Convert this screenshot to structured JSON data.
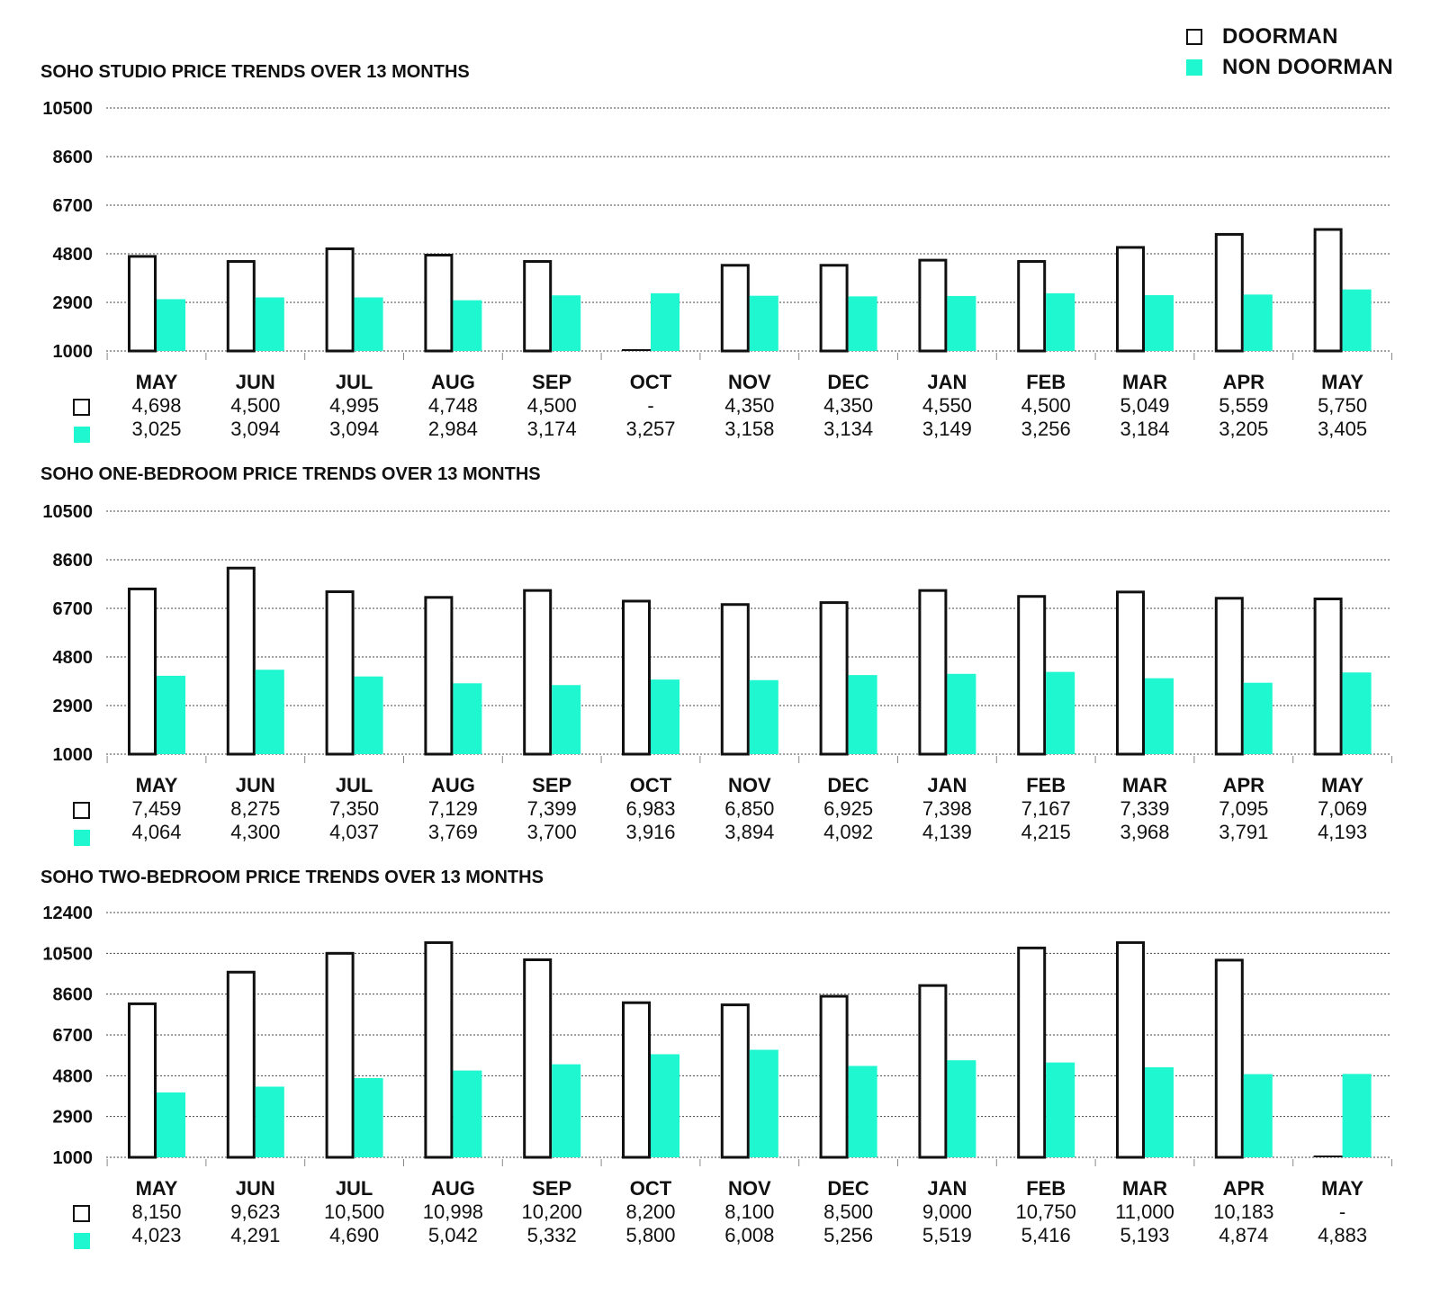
{
  "colors": {
    "doorman_stroke": "#111111",
    "non_doorman": "#1ef7cf",
    "grid": "#444444"
  },
  "legend": {
    "doorman": "DOORMAN",
    "non_doorman": "NON DOORMAN"
  },
  "chart_data": [
    {
      "type": "bar",
      "title": "SOHO STUDIO PRICE TRENDS OVER 13 MONTHS",
      "categories": [
        "MAY",
        "JUN",
        "JUL",
        "AUG",
        "SEP",
        "OCT",
        "NOV",
        "DEC",
        "JAN",
        "FEB",
        "MAR",
        "APR",
        "MAY"
      ],
      "yticks": [
        10500,
        8600,
        6700,
        4800,
        2900,
        1000
      ],
      "ylim": [
        1000,
        10500
      ],
      "series": [
        {
          "name": "DOORMAN",
          "values": [
            4698,
            4500,
            4995,
            4748,
            4500,
            null,
            4350,
            4350,
            4550,
            4500,
            5049,
            5559,
            5750
          ],
          "labels": [
            "4,698",
            "4,500",
            "4,995",
            "4,748",
            "4,500",
            "-",
            "4,350",
            "4,350",
            "4,550",
            "4,500",
            "5,049",
            "5,559",
            "5,750"
          ]
        },
        {
          "name": "NON DOORMAN",
          "values": [
            3025,
            3094,
            3094,
            2984,
            3174,
            3257,
            3158,
            3134,
            3149,
            3256,
            3184,
            3205,
            3405
          ],
          "labels": [
            "3,025",
            "3,094",
            "3,094",
            "2,984",
            "3,174",
            "3,257",
            "3,158",
            "3,134",
            "3,149",
            "3,256",
            "3,184",
            "3,205",
            "3,405"
          ]
        }
      ]
    },
    {
      "type": "bar",
      "title": "SOHO ONE-BEDROOM PRICE TRENDS OVER 13 MONTHS",
      "categories": [
        "MAY",
        "JUN",
        "JUL",
        "AUG",
        "SEP",
        "OCT",
        "NOV",
        "DEC",
        "JAN",
        "FEB",
        "MAR",
        "APR",
        "MAY"
      ],
      "yticks": [
        10500,
        8600,
        6700,
        4800,
        2900,
        1000
      ],
      "ylim": [
        1000,
        10500
      ],
      "series": [
        {
          "name": "DOORMAN",
          "values": [
            7459,
            8275,
            7350,
            7129,
            7399,
            6983,
            6850,
            6925,
            7398,
            7167,
            7339,
            7095,
            7069
          ],
          "labels": [
            "7,459",
            "8,275",
            "7,350",
            "7,129",
            "7,399",
            "6,983",
            "6,850",
            "6,925",
            "7,398",
            "7,167",
            "7,339",
            "7,095",
            "7,069"
          ]
        },
        {
          "name": "NON DOORMAN",
          "values": [
            4064,
            4300,
            4037,
            3769,
            3700,
            3916,
            3894,
            4092,
            4139,
            4215,
            3968,
            3791,
            4193
          ],
          "labels": [
            "4,064",
            "4,300",
            "4,037",
            "3,769",
            "3,700",
            "3,916",
            "3,894",
            "4,092",
            "4,139",
            "4,215",
            "3,968",
            "3,791",
            "4,193"
          ]
        }
      ]
    },
    {
      "type": "bar",
      "title": "SOHO TWO-BEDROOM PRICE TRENDS OVER 13 MONTHS",
      "categories": [
        "MAY",
        "JUN",
        "JUL",
        "AUG",
        "SEP",
        "OCT",
        "NOV",
        "DEC",
        "JAN",
        "FEB",
        "MAR",
        "APR",
        "MAY"
      ],
      "yticks": [
        12400,
        10500,
        8600,
        6700,
        4800,
        2900,
        1000
      ],
      "ylim": [
        1000,
        12400
      ],
      "series": [
        {
          "name": "DOORMAN",
          "values": [
            8150,
            9623,
            10500,
            10998,
            10200,
            8200,
            8100,
            8500,
            9000,
            10750,
            11000,
            10183,
            null
          ],
          "labels": [
            "8,150",
            "9,623",
            "10,500",
            "10,998",
            "10,200",
            "8,200",
            "8,100",
            "8,500",
            "9,000",
            "10,750",
            "11,000",
            "10,183",
            "-"
          ]
        },
        {
          "name": "NON DOORMAN",
          "values": [
            4023,
            4291,
            4690,
            5042,
            5332,
            5800,
            6008,
            5256,
            5519,
            5416,
            5193,
            4874,
            4883
          ],
          "labels": [
            "4,023",
            "4,291",
            "4,690",
            "5,042",
            "5,332",
            "5,800",
            "6,008",
            "5,256",
            "5,519",
            "5,416",
            "5,193",
            "4,874",
            "4,883"
          ]
        }
      ]
    }
  ]
}
